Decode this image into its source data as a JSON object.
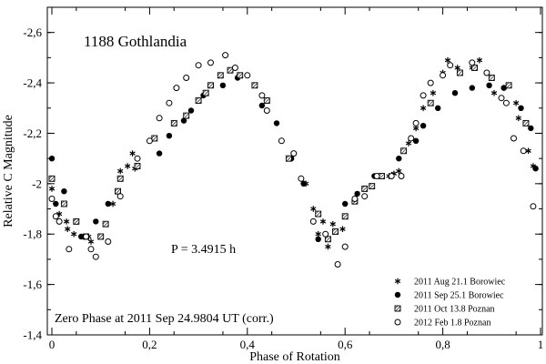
{
  "chart_data": {
    "type": "scatter",
    "title": "1188 Gothlandia",
    "xlabel": "Phase of Rotation",
    "ylabel": "Relative C Magnitude",
    "xlim": [
      0,
      1
    ],
    "ylim": [
      -1.4,
      -2.7
    ],
    "x_ticks": [
      0,
      0.2,
      0.4,
      0.6,
      0.8,
      1
    ],
    "x_tick_labels": [
      "0",
      "0,2",
      "0,4",
      "0,6",
      "0,8",
      "1"
    ],
    "y_ticks": [
      -1.4,
      -1.6,
      -1.8,
      -2.0,
      -2.2,
      -2.4,
      -2.6
    ],
    "y_tick_labels": [
      "-1,4",
      "-1,6",
      "-1,8",
      "-2",
      "-2,2",
      "-2,4",
      "-2,6"
    ],
    "annotations": {
      "period": "P = 3.4915 h",
      "zero_phase": "Zero Phase at 2011 Sep 24.9804  UT (corr.)"
    },
    "legend_position": "bottom-right",
    "series": [
      {
        "name": "2011 Aug 21.1 Borowiec",
        "marker": "asterisk",
        "points": [
          [
            0.0,
            -1.98
          ],
          [
            0.015,
            -1.88
          ],
          [
            0.03,
            -1.85
          ],
          [
            0.032,
            -1.82
          ],
          [
            0.045,
            -1.8
          ],
          [
            0.075,
            -1.79
          ],
          [
            0.08,
            -1.77
          ],
          [
            0.125,
            -1.92
          ],
          [
            0.14,
            -2.05
          ],
          [
            0.155,
            -2.07
          ],
          [
            0.165,
            -2.12
          ],
          [
            0.17,
            -2.06
          ],
          [
            0.52,
            -2.0
          ],
          [
            0.535,
            -1.9
          ],
          [
            0.545,
            -1.8
          ],
          [
            0.555,
            -1.85
          ],
          [
            0.565,
            -1.75
          ],
          [
            0.575,
            -1.84
          ],
          [
            0.595,
            -1.82
          ],
          [
            0.69,
            -2.03
          ],
          [
            0.7,
            -2.04
          ],
          [
            0.71,
            -2.05
          ],
          [
            0.73,
            -2.16
          ],
          [
            0.745,
            -2.22
          ],
          [
            0.76,
            -2.3
          ],
          [
            0.78,
            -2.36
          ],
          [
            0.8,
            -2.44
          ],
          [
            0.81,
            -2.49
          ],
          [
            0.83,
            -2.46
          ],
          [
            0.86,
            -2.46
          ],
          [
            0.875,
            -2.49
          ],
          [
            0.89,
            -2.44
          ],
          [
            0.905,
            -2.36
          ],
          [
            0.925,
            -2.38
          ],
          [
            0.95,
            -2.32
          ],
          [
            0.955,
            -2.26
          ],
          [
            0.975,
            -2.13
          ],
          [
            0.985,
            -2.07
          ]
        ]
      },
      {
        "name": "2011 Sep 25.1 Borowiec",
        "marker": "filled-circle",
        "points": [
          [
            0.0,
            -2.1
          ],
          [
            0.008,
            -1.92
          ],
          [
            0.025,
            -1.97
          ],
          [
            0.06,
            -1.79
          ],
          [
            0.09,
            -1.85
          ],
          [
            0.115,
            -1.92
          ],
          [
            0.135,
            -1.97
          ],
          [
            0.22,
            -2.12
          ],
          [
            0.24,
            -2.19
          ],
          [
            0.27,
            -2.25
          ],
          [
            0.285,
            -2.29
          ],
          [
            0.31,
            -2.35
          ],
          [
            0.35,
            -2.39
          ],
          [
            0.38,
            -2.42
          ],
          [
            0.43,
            -2.31
          ],
          [
            0.46,
            -2.24
          ],
          [
            0.49,
            -2.1
          ],
          [
            0.515,
            -2.0
          ],
          [
            0.545,
            -1.78
          ],
          [
            0.6,
            -1.92
          ],
          [
            0.625,
            -1.96
          ],
          [
            0.66,
            -2.03
          ],
          [
            0.71,
            -2.1
          ],
          [
            0.745,
            -2.17
          ],
          [
            0.76,
            -2.23
          ],
          [
            0.79,
            -2.3
          ],
          [
            0.825,
            -2.36
          ],
          [
            0.86,
            -2.38
          ],
          [
            0.895,
            -2.39
          ],
          [
            0.925,
            -2.38
          ],
          [
            0.96,
            -2.3
          ],
          [
            0.98,
            -2.22
          ],
          [
            0.99,
            -2.06
          ]
        ]
      },
      {
        "name": "2011 Oct 13.8 Poznan",
        "marker": "hatched-square",
        "points": [
          [
            0.0,
            -2.02
          ],
          [
            0.025,
            -1.92
          ],
          [
            0.05,
            -1.85
          ],
          [
            0.07,
            -1.79
          ],
          [
            0.1,
            -1.79
          ],
          [
            0.11,
            -1.84
          ],
          [
            0.135,
            -1.97
          ],
          [
            0.14,
            -2.02
          ],
          [
            0.175,
            -2.07
          ],
          [
            0.21,
            -2.18
          ],
          [
            0.25,
            -2.24
          ],
          [
            0.275,
            -2.27
          ],
          [
            0.3,
            -2.33
          ],
          [
            0.315,
            -2.36
          ],
          [
            0.325,
            -2.39
          ],
          [
            0.345,
            -2.43
          ],
          [
            0.365,
            -2.45
          ],
          [
            0.385,
            -2.43
          ],
          [
            0.415,
            -2.39
          ],
          [
            0.44,
            -2.33
          ],
          [
            0.485,
            -2.1
          ],
          [
            0.545,
            -1.88
          ],
          [
            0.565,
            -1.78
          ],
          [
            0.58,
            -1.81
          ],
          [
            0.6,
            -1.87
          ],
          [
            0.62,
            -1.93
          ],
          [
            0.64,
            -1.98
          ],
          [
            0.655,
            -1.99
          ],
          [
            0.675,
            -2.03
          ],
          [
            0.72,
            -2.13
          ],
          [
            0.775,
            -2.32
          ],
          [
            0.835,
            -2.44
          ],
          [
            0.865,
            -2.46
          ],
          [
            0.9,
            -2.42
          ],
          [
            0.935,
            -2.39
          ],
          [
            0.97,
            -2.24
          ]
        ]
      },
      {
        "name": "2012 Feb 1.8 Poznan",
        "marker": "open-circle",
        "points": [
          [
            0.0,
            -1.94
          ],
          [
            0.008,
            -1.87
          ],
          [
            0.015,
            -1.85
          ],
          [
            0.035,
            -1.74
          ],
          [
            0.07,
            -1.79
          ],
          [
            0.08,
            -1.74
          ],
          [
            0.09,
            -1.71
          ],
          [
            0.115,
            -1.77
          ],
          [
            0.14,
            -1.95
          ],
          [
            0.175,
            -2.1
          ],
          [
            0.2,
            -2.17
          ],
          [
            0.22,
            -2.26
          ],
          [
            0.24,
            -2.32
          ],
          [
            0.255,
            -2.38
          ],
          [
            0.275,
            -2.42
          ],
          [
            0.3,
            -2.47
          ],
          [
            0.325,
            -2.48
          ],
          [
            0.355,
            -2.51
          ],
          [
            0.375,
            -2.46
          ],
          [
            0.4,
            -2.43
          ],
          [
            0.43,
            -2.35
          ],
          [
            0.44,
            -2.29
          ],
          [
            0.47,
            -2.17
          ],
          [
            0.495,
            -2.12
          ],
          [
            0.51,
            -2.02
          ],
          [
            0.535,
            -1.85
          ],
          [
            0.56,
            -1.8
          ],
          [
            0.585,
            -1.68
          ],
          [
            0.6,
            -1.75
          ],
          [
            0.62,
            -1.94
          ],
          [
            0.64,
            -1.95
          ],
          [
            0.665,
            -2.03
          ],
          [
            0.695,
            -2.03
          ],
          [
            0.715,
            -2.03
          ],
          [
            0.735,
            -2.18
          ],
          [
            0.745,
            -2.24
          ],
          [
            0.76,
            -2.35
          ],
          [
            0.775,
            -2.4
          ],
          [
            0.8,
            -2.43
          ],
          [
            0.815,
            -2.47
          ],
          [
            0.86,
            -2.48
          ],
          [
            0.89,
            -2.44
          ],
          [
            0.92,
            -2.34
          ],
          [
            0.93,
            -2.32
          ],
          [
            0.945,
            -2.18
          ],
          [
            0.965,
            -2.13
          ],
          [
            0.985,
            -1.91
          ]
        ]
      }
    ]
  }
}
